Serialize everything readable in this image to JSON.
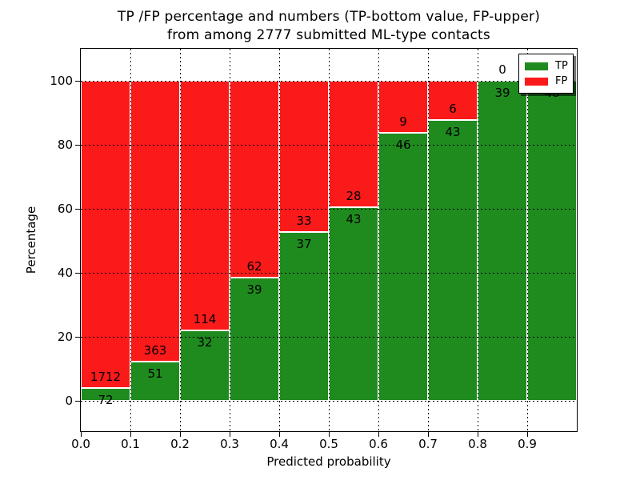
{
  "title": {
    "line1": "TP /FP percentage and numbers (TP-bottom value, FP-upper)",
    "line2": "from among 2777 submitted ML-type contacts"
  },
  "colors": {
    "tp_green": "#1f8b1f",
    "fp_red": "#fa1a1a",
    "background": "#ffffff",
    "grid": "#000000",
    "bar_edge": "#ffffff"
  },
  "axes": {
    "ylabel": "Percentage",
    "xlabel": "Predicted probability",
    "ytick_values": [
      0,
      20,
      40,
      60,
      80,
      100
    ],
    "ytick_labels": [
      "0",
      "20",
      "40",
      "60",
      "80",
      "100"
    ],
    "xtick_values": [
      0.0,
      0.1,
      0.2,
      0.3,
      0.4,
      0.5,
      0.6,
      0.7,
      0.8,
      0.9
    ],
    "xtick_labels": [
      "0.0",
      "0.1",
      "0.2",
      "0.3",
      "0.4",
      "0.5",
      "0.6",
      "0.7",
      "0.8",
      "0.9"
    ]
  },
  "legend": {
    "items": [
      {
        "label": "TP",
        "color_key": "tp_green",
        "swatch": "green-swatch-icon"
      },
      {
        "label": "FP",
        "color_key": "fp_red",
        "swatch": "red-swatch-icon"
      }
    ],
    "position": "upper right",
    "shadow": true
  },
  "chart_data": {
    "type": "bar",
    "stacked": true,
    "title": "TP /FP percentage and numbers (TP-bottom value, FP-upper) from among 2777 submitted ML-type contacts",
    "xlabel": "Predicted probability",
    "ylabel": "Percentage",
    "total_contacts": 2777,
    "bin_width": 0.1,
    "x_bins": [
      "0.0-0.1",
      "0.1-0.2",
      "0.2-0.3",
      "0.3-0.4",
      "0.4-0.5",
      "0.5-0.6",
      "0.6-0.7",
      "0.7-0.8",
      "0.8-0.9",
      "0.9-1.0"
    ],
    "series": [
      {
        "name": "TP",
        "counts": [
          72,
          51,
          32,
          39,
          37,
          43,
          46,
          43,
          39,
          48
        ],
        "percent": [
          4.0,
          12.3,
          21.9,
          38.6,
          52.9,
          60.6,
          83.6,
          87.8,
          100.0,
          100.0
        ]
      },
      {
        "name": "FP",
        "counts": [
          1712,
          363,
          114,
          62,
          33,
          28,
          9,
          6,
          0,
          0
        ],
        "percent": [
          96.0,
          87.7,
          78.1,
          61.4,
          47.1,
          39.4,
          16.4,
          12.2,
          0.0,
          0.0
        ]
      }
    ],
    "value_labels": {
      "tp": [
        "72",
        "51",
        "32",
        "39",
        "37",
        "43",
        "46",
        "43",
        "39",
        "48"
      ],
      "fp": [
        "1712",
        "363",
        "114",
        "62",
        "33",
        "28",
        "9",
        "6",
        "0",
        ""
      ]
    },
    "ylim": [
      -9.5,
      110
    ],
    "xlim": [
      0.0,
      1.0
    ],
    "grid": "dotted",
    "legend_position": "upper right"
  }
}
